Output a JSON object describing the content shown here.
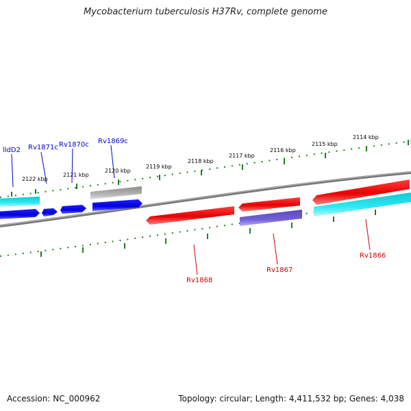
{
  "header": {
    "title": "Mycobacterium tuberculosis H37Rv, complete genome"
  },
  "footer": {
    "accession": "Accession: NC_000962",
    "summary": "Topology: circular; Length: 4,411,532 bp; Genes: 4,038"
  },
  "map": {
    "kbp_labels": [
      "2122 kbp",
      "2121 kbp",
      "2120 kbp",
      "2119 kbp",
      "2118 kbp",
      "2117 kbp",
      "2116 kbp",
      "2115 kbp",
      "2114 kbp"
    ],
    "genes_top": [
      "lldD2",
      "Rv1871c",
      "Rv1870c",
      "Rv1869c"
    ],
    "genes_bottom": [
      "Rv1868",
      "Rv1867",
      "Rv1866"
    ]
  },
  "colors": {
    "forward_gene": "#e60000",
    "reverse_gene": "#0000e6",
    "cyan_gene": "#22d8e8",
    "purple_gene": "#6a5acd",
    "gray_gene": "#b0b0b0",
    "backbone": "#777777",
    "tick": "#1a7f1a",
    "label_top": "#0000cc",
    "label_bottom": "#cc0000"
  }
}
